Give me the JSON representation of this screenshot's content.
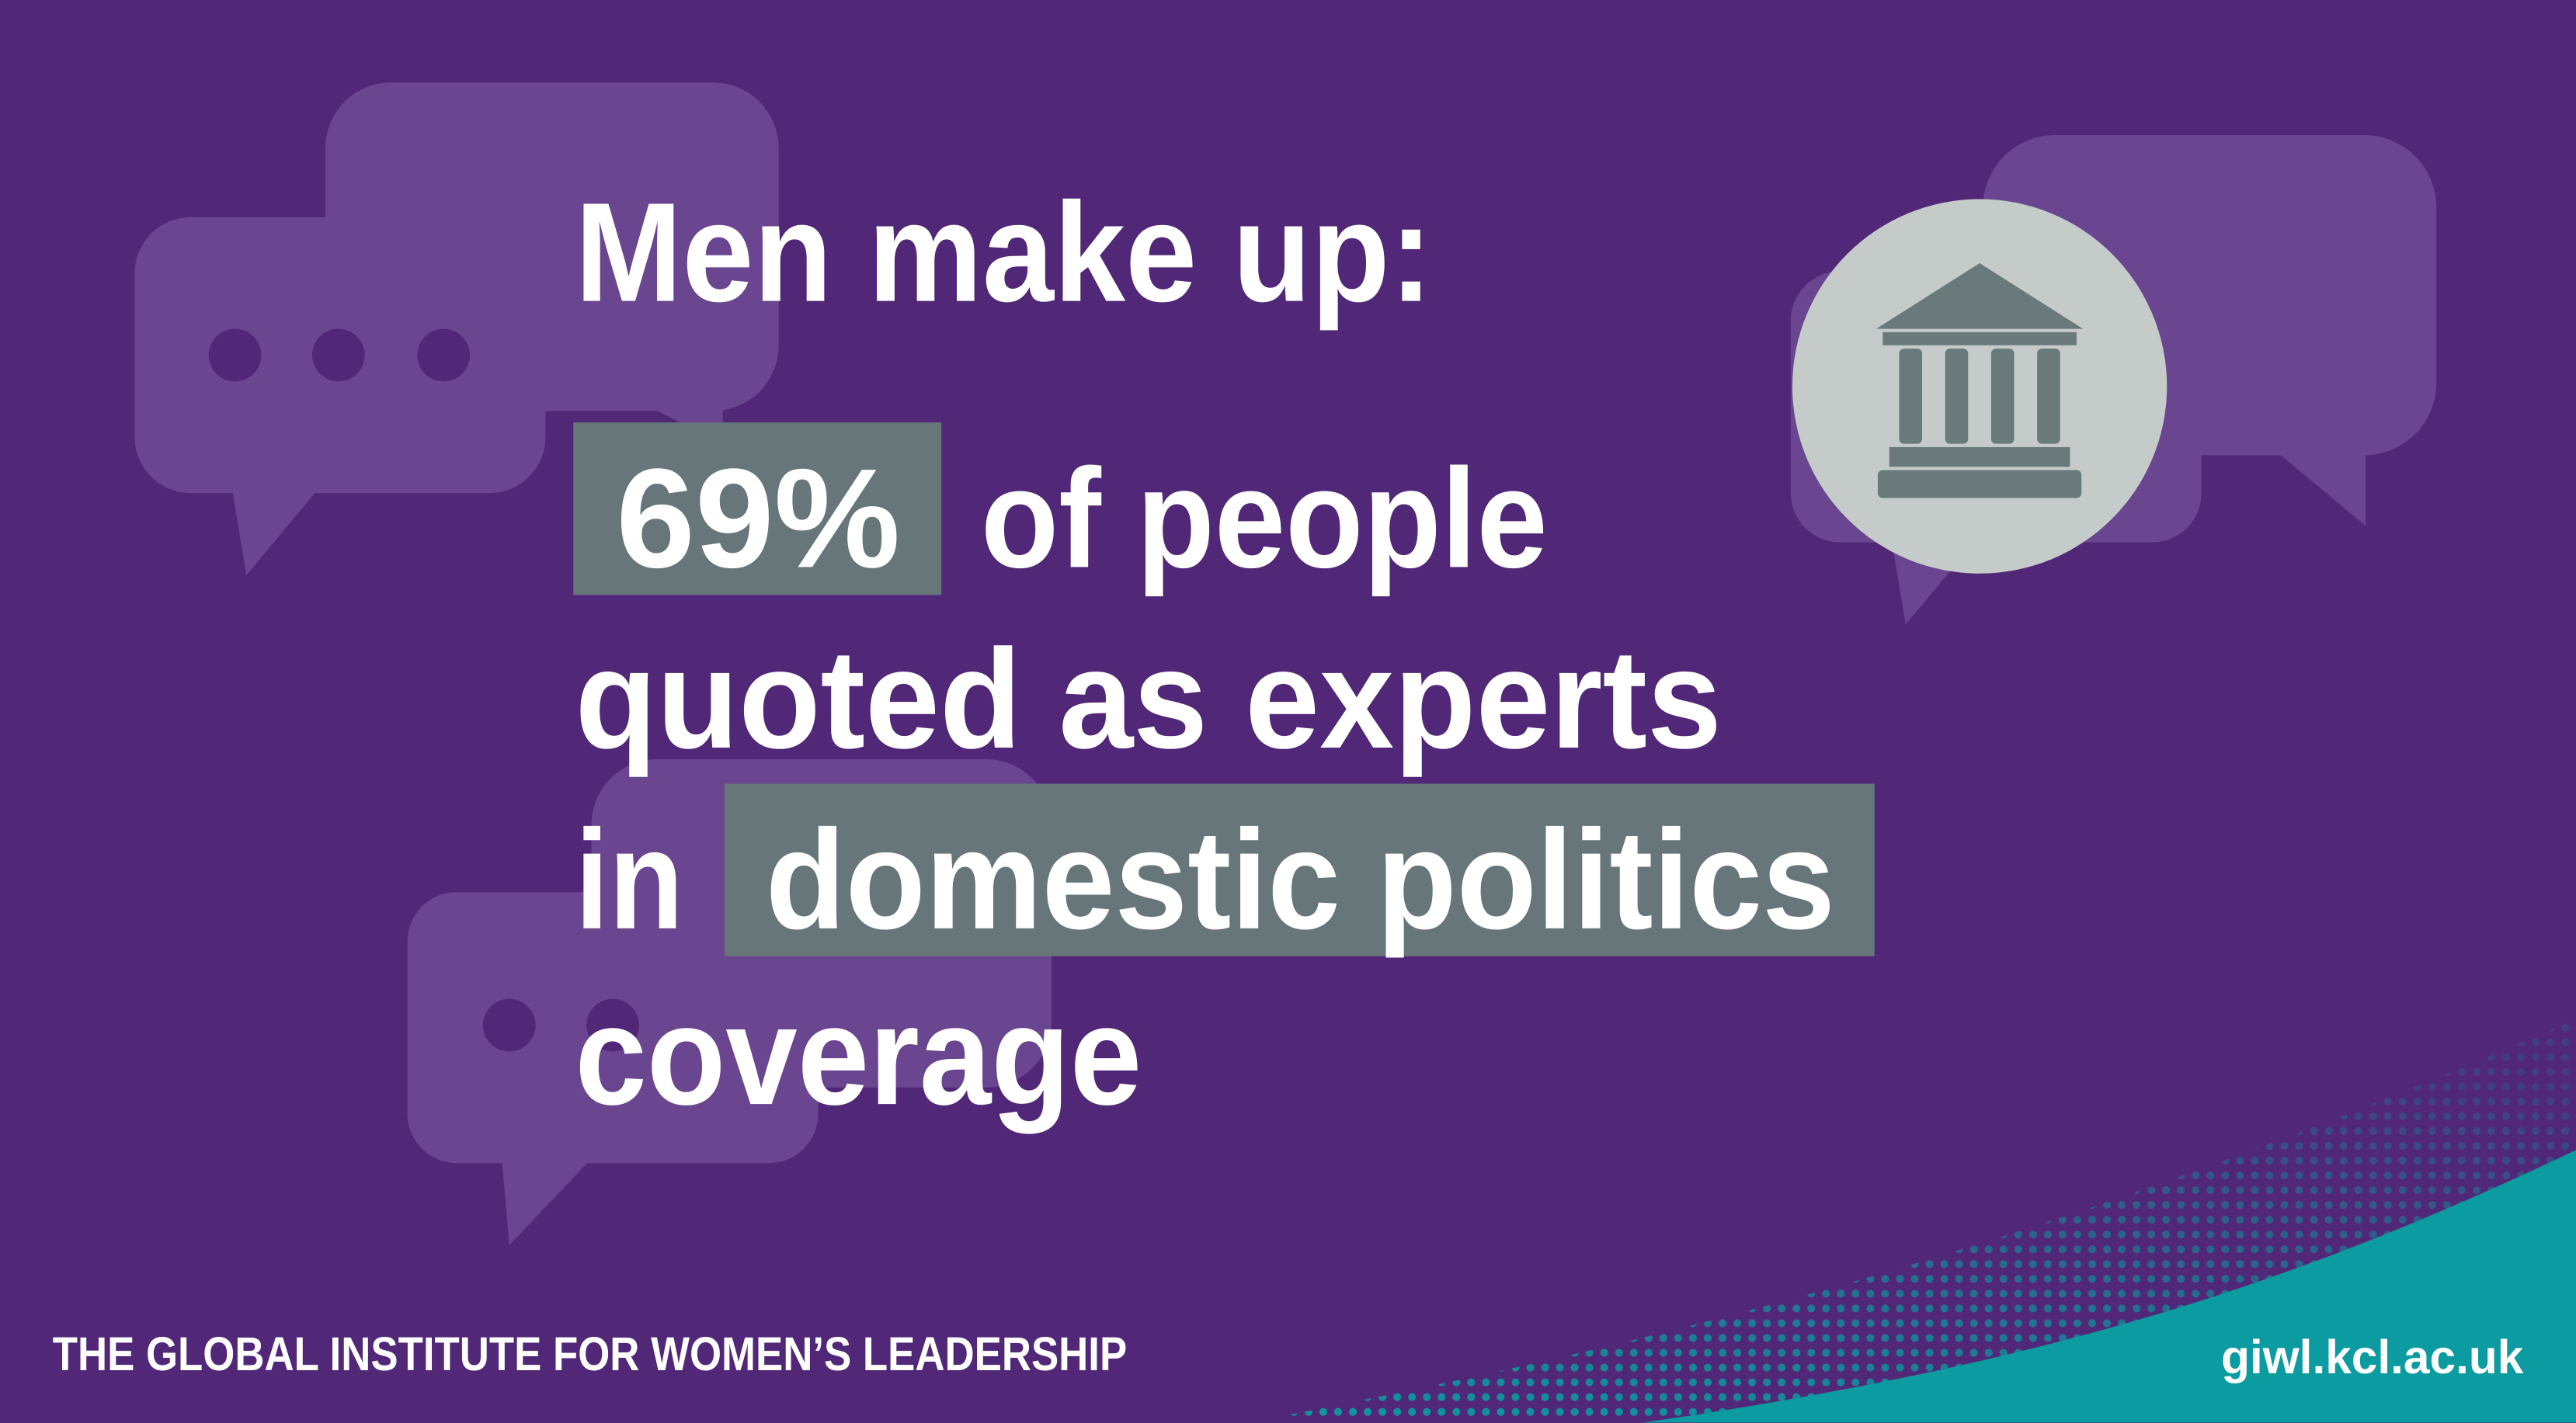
{
  "headline": "Men make up:",
  "statement": {
    "highlight_1": "69%",
    "text_1": "of people",
    "text_2": "quoted as experts",
    "text_3": "in",
    "highlight_2": "domestic politics",
    "text_4": "coverage"
  },
  "footer": {
    "organization": "THE GLOBAL INSTITUTE FOR WOMEN’S LEADERSHIP",
    "url": "giwl.kcl.ac.uk"
  }
}
